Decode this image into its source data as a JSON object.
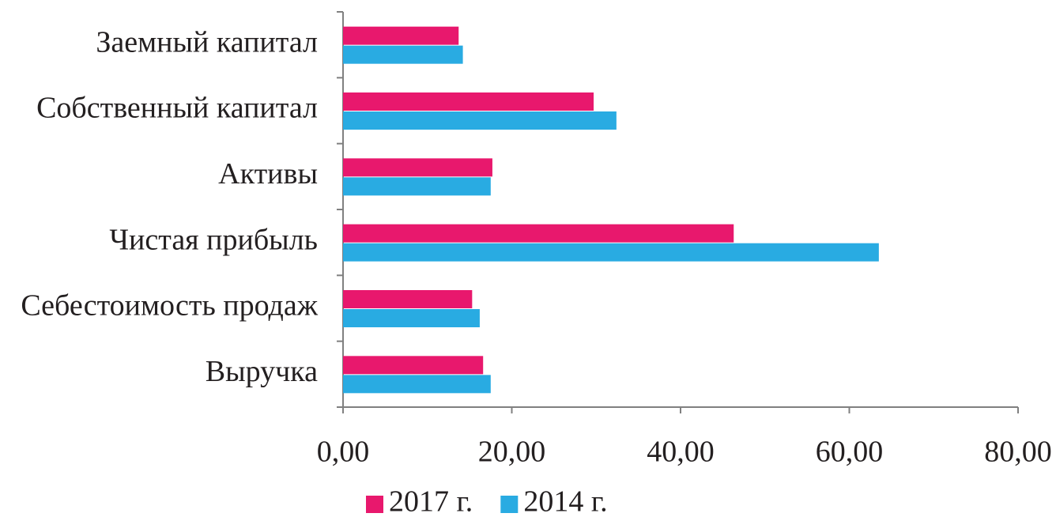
{
  "chart_data": {
    "type": "hbar",
    "categories": [
      "Заемный капитал",
      "Собственный капитал",
      "Активы",
      "Чистая прибыль",
      "Себестоимость продаж",
      "Выручка"
    ],
    "series": [
      {
        "name": "2017 г.",
        "color": "#e8186d",
        "values": [
          13.7,
          29.7,
          17.7,
          46.3,
          15.3,
          16.6
        ]
      },
      {
        "name": "2014 г.",
        "color": "#29abe2",
        "values": [
          14.2,
          32.4,
          17.5,
          63.5,
          16.2,
          17.5
        ]
      }
    ],
    "xlim": [
      0,
      80
    ],
    "xticks": [
      {
        "value": 0,
        "label": "0,00"
      },
      {
        "value": 20,
        "label": "20,00"
      },
      {
        "value": 40,
        "label": "40,00"
      },
      {
        "value": 60,
        "label": "60,00"
      },
      {
        "value": 80,
        "label": "80,00"
      }
    ],
    "legend": "bottom"
  }
}
